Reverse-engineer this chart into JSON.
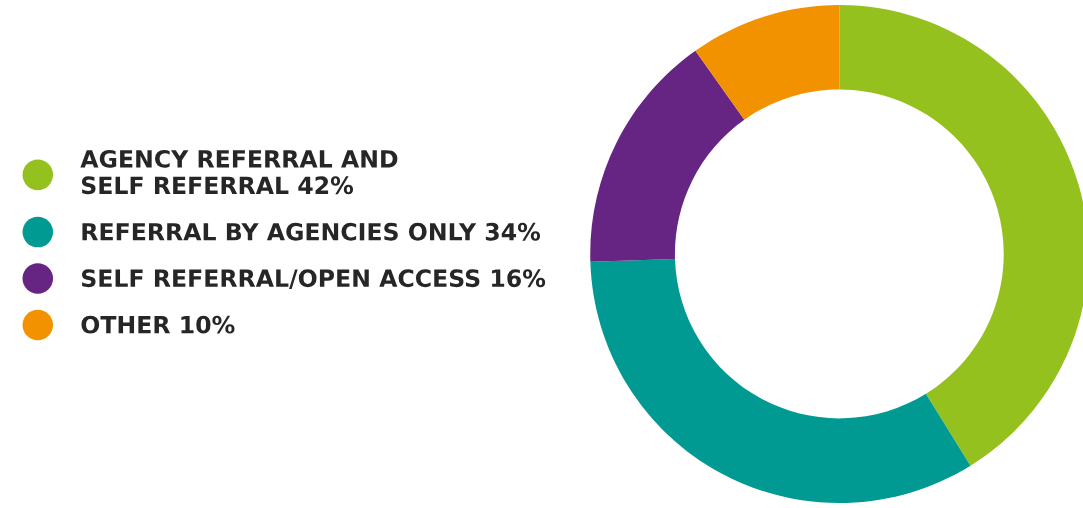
{
  "chart_data": {
    "type": "donut",
    "categories": [
      "AGENCY REFERRAL AND\nSELF REFERRAL",
      "REFERRAL BY AGENCIES ONLY",
      "SELF REFERRAL/OPEN ACCESS",
      "OTHER"
    ],
    "values": [
      42,
      34,
      16,
      10
    ],
    "value_labels": [
      "42%",
      "34%",
      "16%",
      "10%"
    ],
    "colors": [
      "#95c11f",
      "#009a93",
      "#662483",
      "#f39200"
    ],
    "legend": "left"
  }
}
